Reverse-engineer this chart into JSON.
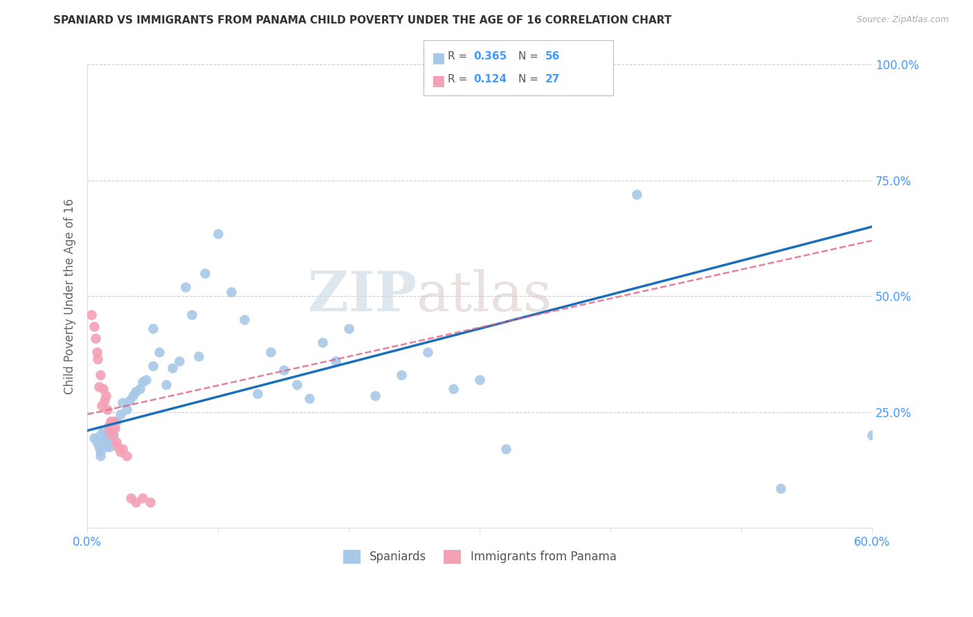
{
  "title": "SPANIARD VS IMMIGRANTS FROM PANAMA CHILD POVERTY UNDER THE AGE OF 16 CORRELATION CHART",
  "source": "Source: ZipAtlas.com",
  "ylabel": "Child Poverty Under the Age of 16",
  "xlim": [
    0.0,
    0.6
  ],
  "ylim": [
    0.0,
    1.0
  ],
  "xticks": [
    0.0,
    0.1,
    0.2,
    0.3,
    0.4,
    0.5,
    0.6
  ],
  "xticklabels": [
    "0.0%",
    "",
    "",
    "",
    "",
    "",
    "60.0%"
  ],
  "yticks": [
    0.0,
    0.25,
    0.5,
    0.75,
    1.0
  ],
  "yticklabels_right": [
    "",
    "25.0%",
    "50.0%",
    "75.0%",
    "100.0%"
  ],
  "R_spaniard": 0.365,
  "N_spaniard": 56,
  "R_panama": 0.124,
  "N_panama": 27,
  "spaniard_color": "#a8c8e8",
  "panama_color": "#f4a0b5",
  "trend_spaniard_color": "#1a6fbd",
  "trend_panama_color": "#e06080",
  "legend_spaniard": "Spaniards",
  "legend_panama": "Immigrants from Panama",
  "watermark_zip": "ZIP",
  "watermark_atlas": "atlas",
  "tick_color": "#4499ff",
  "ylabel_color": "#666666",
  "spaniard_x": [
    0.005,
    0.007,
    0.009,
    0.01,
    0.01,
    0.01,
    0.012,
    0.013,
    0.014,
    0.015,
    0.016,
    0.017,
    0.018,
    0.019,
    0.02,
    0.02,
    0.022,
    0.025,
    0.027,
    0.03,
    0.032,
    0.035,
    0.037,
    0.04,
    0.042,
    0.045,
    0.05,
    0.05,
    0.055,
    0.06,
    0.065,
    0.07,
    0.075,
    0.08,
    0.085,
    0.09,
    0.1,
    0.11,
    0.12,
    0.13,
    0.14,
    0.15,
    0.16,
    0.17,
    0.18,
    0.19,
    0.2,
    0.22,
    0.24,
    0.26,
    0.28,
    0.3,
    0.32,
    0.42,
    0.53,
    0.6
  ],
  "spaniard_y": [
    0.195,
    0.185,
    0.175,
    0.165,
    0.155,
    0.2,
    0.21,
    0.195,
    0.175,
    0.185,
    0.195,
    0.175,
    0.225,
    0.185,
    0.2,
    0.215,
    0.23,
    0.245,
    0.27,
    0.255,
    0.275,
    0.285,
    0.295,
    0.3,
    0.315,
    0.32,
    0.35,
    0.43,
    0.38,
    0.31,
    0.345,
    0.36,
    0.52,
    0.46,
    0.37,
    0.55,
    0.635,
    0.51,
    0.45,
    0.29,
    0.38,
    0.34,
    0.31,
    0.28,
    0.4,
    0.36,
    0.43,
    0.285,
    0.33,
    0.38,
    0.3,
    0.32,
    0.17,
    0.72,
    0.085,
    0.2
  ],
  "panama_x": [
    0.003,
    0.005,
    0.006,
    0.007,
    0.008,
    0.009,
    0.01,
    0.011,
    0.012,
    0.013,
    0.014,
    0.015,
    0.016,
    0.017,
    0.018,
    0.019,
    0.02,
    0.021,
    0.022,
    0.023,
    0.025,
    0.027,
    0.03,
    0.033,
    0.037,
    0.042,
    0.048
  ],
  "panama_y": [
    0.46,
    0.435,
    0.41,
    0.38,
    0.365,
    0.305,
    0.33,
    0.265,
    0.3,
    0.275,
    0.285,
    0.255,
    0.22,
    0.21,
    0.23,
    0.2,
    0.23,
    0.215,
    0.185,
    0.175,
    0.165,
    0.17,
    0.155,
    0.065,
    0.055,
    0.065,
    0.055
  ],
  "trend_s_x0": 0.0,
  "trend_s_y0": 0.21,
  "trend_s_x1": 0.6,
  "trend_s_y1": 0.65,
  "trend_p_x0": 0.0,
  "trend_p_y0": 0.245,
  "trend_p_x1": 0.6,
  "trend_p_y1": 0.62
}
